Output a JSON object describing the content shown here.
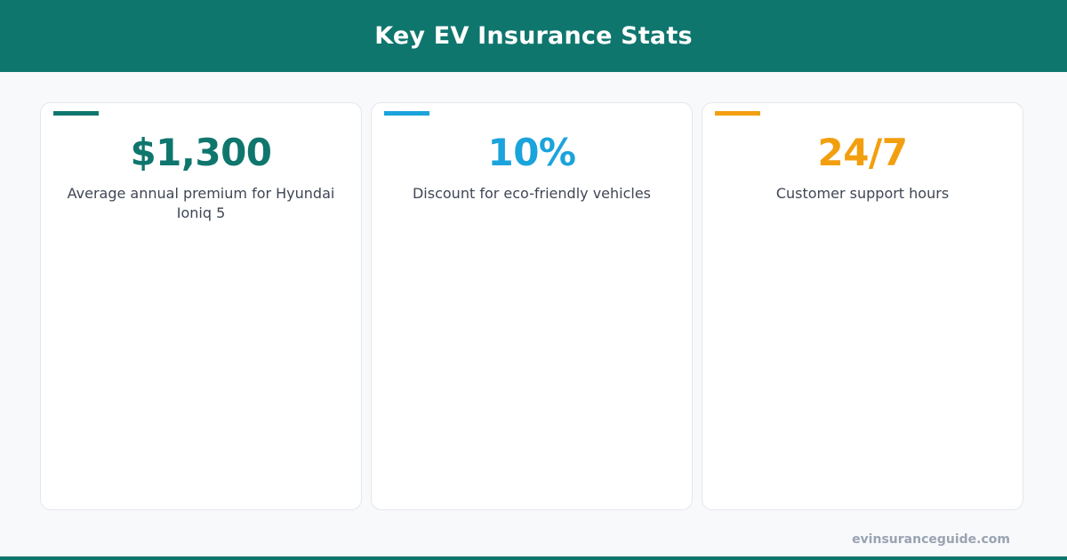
{
  "header": {
    "title": "Key EV Insurance Stats"
  },
  "colors": {
    "brand": "#0f766e",
    "accent_blue": "#1ba3dc",
    "accent_orange": "#f29f0f"
  },
  "stats": [
    {
      "value": "$1,300",
      "label": "Average annual premium for Hyundai Ioniq 5",
      "color": "#0f766e"
    },
    {
      "value": "10%",
      "label": "Discount for eco-friendly vehicles",
      "color": "#1ba3dc"
    },
    {
      "value": "24/7",
      "label": "Customer support hours",
      "color": "#f29f0f"
    }
  ],
  "footer": {
    "url": "evinsuranceguide.com"
  }
}
